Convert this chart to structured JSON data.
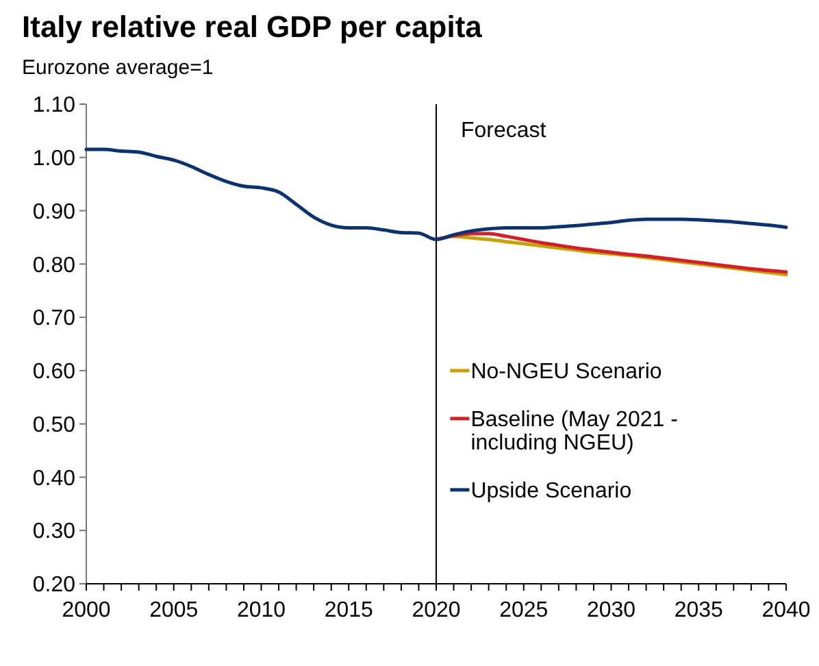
{
  "chart_data": {
    "type": "line",
    "title": "Italy relative real GDP per capita",
    "subtitle": "Eurozone average=1",
    "xlim": [
      2000,
      2040
    ],
    "xticks": [
      2000,
      {
        "value": 2001,
        "label": null
      },
      {
        "value": 2002,
        "label": null
      },
      {
        "value": 2003,
        "label": null
      },
      {
        "value": 2004,
        "label": null
      },
      2005,
      {
        "value": 2006,
        "label": null
      },
      {
        "value": 2007,
        "label": null
      },
      {
        "value": 2008,
        "label": null
      },
      {
        "value": 2009,
        "label": null
      },
      2010,
      {
        "value": 2011,
        "label": null
      },
      {
        "value": 2012,
        "label": null
      },
      {
        "value": 2013,
        "label": null
      },
      {
        "value": 2014,
        "label": null
      },
      2015,
      {
        "value": 2016,
        "label": null
      },
      {
        "value": 2017,
        "label": null
      },
      {
        "value": 2018,
        "label": null
      },
      {
        "value": 2019,
        "label": null
      },
      2020,
      {
        "value": 2021,
        "label": null
      },
      {
        "value": 2022,
        "label": null
      },
      {
        "value": 2023,
        "label": null
      },
      {
        "value": 2024,
        "label": null
      },
      2025,
      {
        "value": 2026,
        "label": null
      },
      {
        "value": 2027,
        "label": null
      },
      {
        "value": 2028,
        "label": null
      },
      {
        "value": 2029,
        "label": null
      },
      2030,
      {
        "value": 2031,
        "label": null
      },
      {
        "value": 2032,
        "label": null
      },
      {
        "value": 2033,
        "label": null
      },
      {
        "value": 2034,
        "label": null
      },
      2035,
      {
        "value": 2036,
        "label": null
      },
      {
        "value": 2037,
        "label": null
      },
      {
        "value": 2038,
        "label": null
      },
      {
        "value": 2039,
        "label": null
      },
      2040
    ],
    "ylim": [
      0.2,
      1.1
    ],
    "yticks": [
      {
        "value": 0.2,
        "label": "0.20"
      },
      {
        "value": 0.3,
        "label": "0.30"
      },
      {
        "value": 0.4,
        "label": "0.40"
      },
      {
        "value": 0.5,
        "label": "0.50"
      },
      {
        "value": 0.6,
        "label": "0.60"
      },
      {
        "value": 0.7,
        "label": "0.70"
      },
      {
        "value": 0.8,
        "label": "0.80"
      },
      {
        "value": 0.9,
        "label": "0.90"
      },
      {
        "value": 1.0,
        "label": "1.00"
      },
      {
        "value": 1.1,
        "label": "1.10"
      }
    ],
    "grid": false,
    "legend": "right",
    "line_style": "solid",
    "marker": "none",
    "ref_lines": [
      {
        "axis": "x",
        "value": 2020,
        "label": "Forecast",
        "color": "#000000"
      }
    ],
    "series": [
      {
        "name": "No-NGEU Scenario",
        "color": "#c8a000",
        "x": [
          2020,
          2021,
          2022,
          2023,
          2024,
          2025,
          2026,
          2027,
          2028,
          2029,
          2030,
          2031,
          2032,
          2033,
          2034,
          2035,
          2036,
          2037,
          2038,
          2039,
          2040
        ],
        "values": [
          0.846,
          0.852,
          0.849,
          0.846,
          0.842,
          0.838,
          0.834,
          0.83,
          0.826,
          0.822,
          0.819,
          0.816,
          0.812,
          0.808,
          0.804,
          0.8,
          0.796,
          0.792,
          0.788,
          0.784,
          0.78
        ]
      },
      {
        "name": "Baseline (May 2021 - including NGEU)",
        "color": "#d0202a",
        "x": [
          2020,
          2021,
          2022,
          2023,
          2024,
          2025,
          2026,
          2027,
          2028,
          2029,
          2030,
          2031,
          2032,
          2033,
          2034,
          2035,
          2036,
          2037,
          2038,
          2039,
          2040
        ],
        "values": [
          0.846,
          0.853,
          0.857,
          0.857,
          0.852,
          0.846,
          0.84,
          0.835,
          0.83,
          0.826,
          0.822,
          0.818,
          0.815,
          0.811,
          0.807,
          0.803,
          0.799,
          0.795,
          0.791,
          0.788,
          0.785
        ]
      },
      {
        "name": "Upside Scenario",
        "color": "#0c3370",
        "x": [
          2000,
          2001,
          2002,
          2003,
          2004,
          2005,
          2006,
          2007,
          2008,
          2009,
          2010,
          2011,
          2012,
          2013,
          2014,
          2015,
          2016,
          2017,
          2018,
          2019,
          2020,
          2021,
          2022,
          2023,
          2024,
          2025,
          2026,
          2027,
          2028,
          2029,
          2030,
          2031,
          2032,
          2033,
          2034,
          2035,
          2036,
          2037,
          2038,
          2039,
          2040
        ],
        "values": [
          1.015,
          1.015,
          1.012,
          1.01,
          1.002,
          0.995,
          0.983,
          0.968,
          0.955,
          0.946,
          0.943,
          0.935,
          0.912,
          0.888,
          0.873,
          0.868,
          0.868,
          0.864,
          0.859,
          0.858,
          0.846,
          0.855,
          0.862,
          0.866,
          0.868,
          0.868,
          0.868,
          0.87,
          0.872,
          0.875,
          0.878,
          0.882,
          0.884,
          0.884,
          0.884,
          0.883,
          0.881,
          0.879,
          0.876,
          0.873,
          0.869
        ]
      }
    ]
  }
}
